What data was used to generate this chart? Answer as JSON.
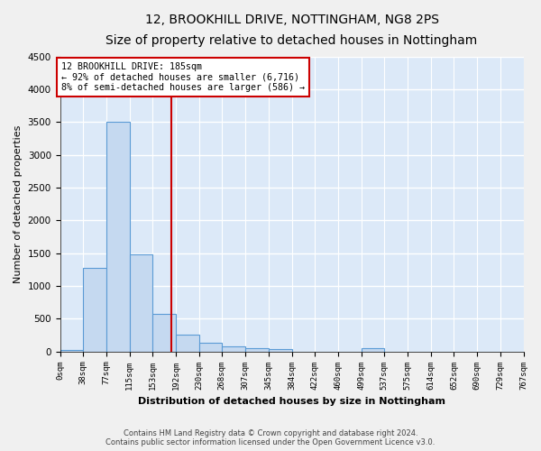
{
  "title": "12, BROOKHILL DRIVE, NOTTINGHAM, NG8 2PS",
  "subtitle": "Size of property relative to detached houses in Nottingham",
  "xlabel": "Distribution of detached houses by size in Nottingham",
  "ylabel": "Number of detached properties",
  "footer_line1": "Contains HM Land Registry data © Crown copyright and database right 2024.",
  "footer_line2": "Contains public sector information licensed under the Open Government Licence v3.0.",
  "bar_color": "#c5d9f0",
  "bar_edge_color": "#5b9bd5",
  "background_color": "#dce9f8",
  "grid_color": "#ffffff",
  "fig_background": "#f0f0f0",
  "annotation_line_color": "#cc0000",
  "annotation_box_color": "#cc0000",
  "property_size": 185,
  "annotation_text_line1": "12 BROOKHILL DRIVE: 185sqm",
  "annotation_text_line2": "← 92% of detached houses are smaller (6,716)",
  "annotation_text_line3": "8% of semi-detached houses are larger (586) →",
  "bin_edges": [
    0,
    38,
    77,
    115,
    153,
    192,
    230,
    268,
    307,
    345,
    384,
    422,
    460,
    499,
    537,
    575,
    614,
    652,
    690,
    729,
    767
  ],
  "bin_counts": [
    30,
    1270,
    3500,
    1480,
    575,
    255,
    135,
    80,
    55,
    35,
    0,
    0,
    0,
    45,
    0,
    0,
    0,
    0,
    0,
    0
  ],
  "ylim": [
    0,
    4500
  ],
  "yticks": [
    0,
    500,
    1000,
    1500,
    2000,
    2500,
    3000,
    3500,
    4000,
    4500
  ]
}
